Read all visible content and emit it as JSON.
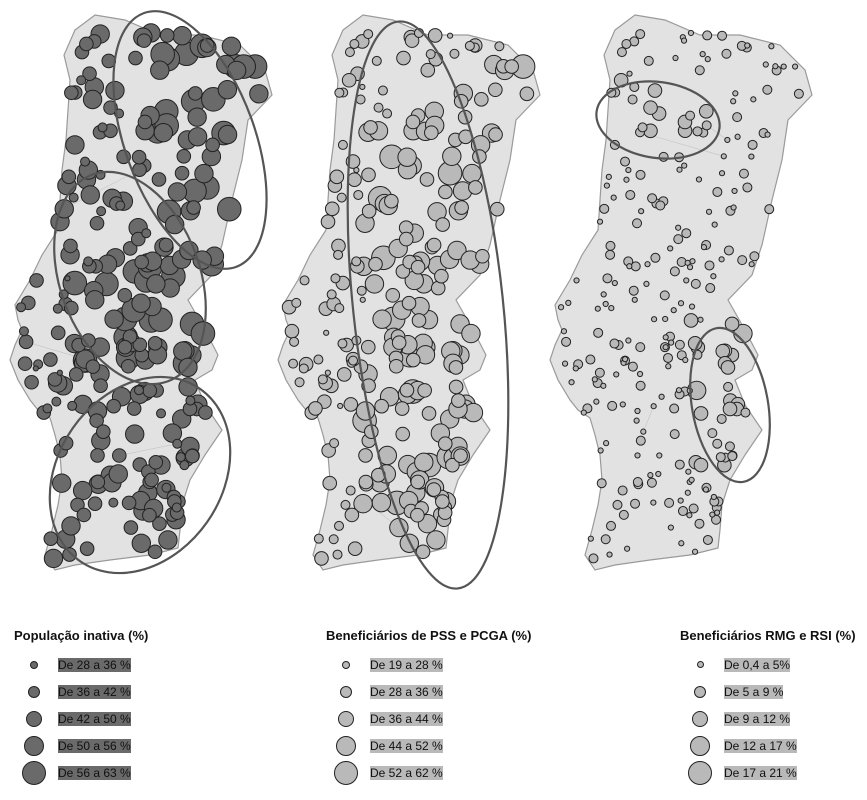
{
  "maps": [
    {
      "id": "pop",
      "legend_title": "População inativa (%)",
      "fill": "#6a6a6a",
      "classes": [
        "De 28 a 36 %",
        "De 36 a 42 %",
        "De 42 a 50 %",
        "De 50 a 56 %",
        "De 56 a 63 %"
      ],
      "highlight_areas": 3
    },
    {
      "id": "pss",
      "legend_title": "Beneficiários de PSS e PCGA (%)",
      "fill": "#b9b9b9",
      "classes": [
        "De 19 a 28 %",
        "De 28 a 36 %",
        "De 36 a 44 %",
        "De 44 a 52 %",
        "De 52 a 62 %"
      ],
      "highlight_areas": 1
    },
    {
      "id": "rmg",
      "legend_title": "Beneficiários RMG e RSI (%)",
      "fill": "#b9b9b9",
      "classes": [
        "De 0,4 a 5%",
        "De 5 a 9 %",
        "De 9 a 12 %",
        "De 12 a 17 %",
        "De 17 a 21 %"
      ],
      "highlight_areas": 2
    }
  ],
  "colors": {
    "land": "#e2e2e2",
    "border": "#9a9a9a",
    "ellipse": "#555555"
  }
}
